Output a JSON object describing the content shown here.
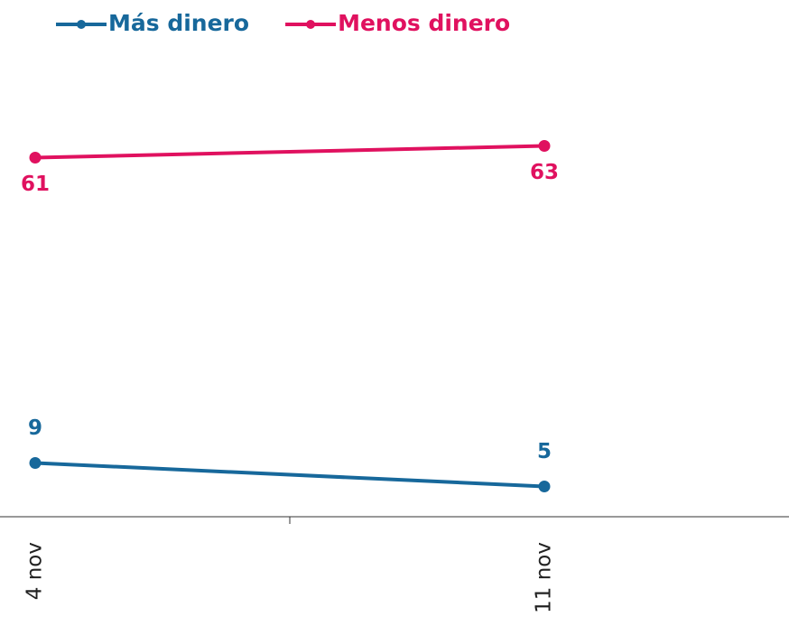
{
  "chart_data": {
    "type": "line",
    "categories": [
      "4 nov",
      "11 nov"
    ],
    "series": [
      {
        "name": "Más dinero",
        "color": "#17689b",
        "values": [
          9,
          5
        ]
      },
      {
        "name": "Menos dinero",
        "color": "#e0115f",
        "values": [
          61,
          63
        ]
      }
    ],
    "ylim": [
      0,
      65
    ],
    "legend": "top-left"
  }
}
